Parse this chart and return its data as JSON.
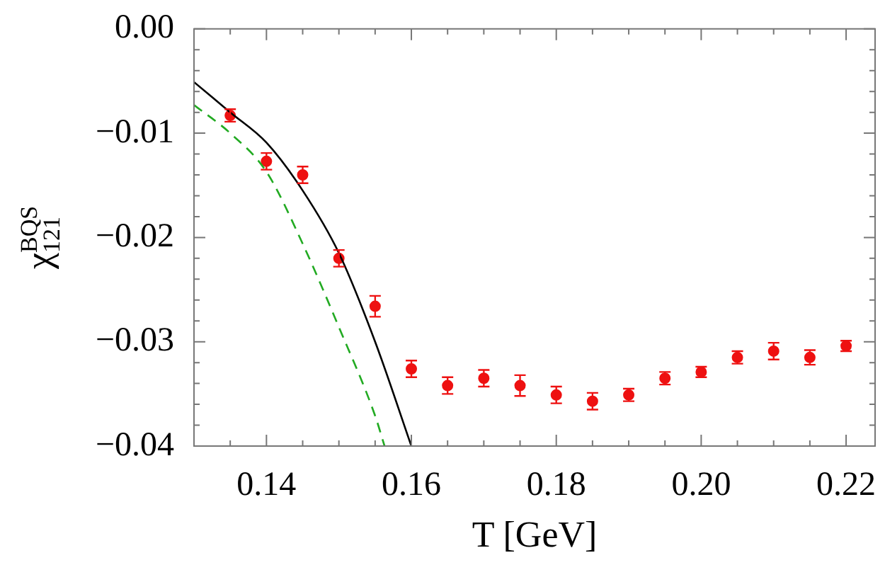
{
  "chart_data": {
    "type": "scatter",
    "xlabel": "T [GeV]",
    "ylabel": "χ$_{121}$$^{BQS}$",
    "xlim": [
      0.13,
      0.224
    ],
    "ylim": [
      -0.04,
      0
    ],
    "xticks": [
      {
        "value": 0.135,
        "label": null
      },
      {
        "value": 0.14,
        "label": "0.14"
      },
      {
        "value": 0.145,
        "label": null
      },
      {
        "value": 0.15,
        "label": null
      },
      {
        "value": 0.155,
        "label": null
      },
      {
        "value": 0.16,
        "label": "0.16"
      },
      {
        "value": 0.165,
        "label": null
      },
      {
        "value": 0.17,
        "label": null
      },
      {
        "value": 0.175,
        "label": null
      },
      {
        "value": 0.18,
        "label": "0.18"
      },
      {
        "value": 0.185,
        "label": null
      },
      {
        "value": 0.19,
        "label": null
      },
      {
        "value": 0.195,
        "label": null
      },
      {
        "value": 0.2,
        "label": "0.20"
      },
      {
        "value": 0.205,
        "label": null
      },
      {
        "value": 0.21,
        "label": null
      },
      {
        "value": 0.215,
        "label": null
      },
      {
        "value": 0.22,
        "label": "0.22"
      }
    ],
    "yticks": [
      {
        "value": -0.04,
        "label": "−0.04"
      },
      {
        "value": -0.038,
        "label": null
      },
      {
        "value": -0.036,
        "label": null
      },
      {
        "value": -0.034,
        "label": null
      },
      {
        "value": -0.032,
        "label": null
      },
      {
        "value": -0.03,
        "label": "−0.03"
      },
      {
        "value": -0.028,
        "label": null
      },
      {
        "value": -0.026,
        "label": null
      },
      {
        "value": -0.024,
        "label": null
      },
      {
        "value": -0.022,
        "label": null
      },
      {
        "value": -0.02,
        "label": "−0.02"
      },
      {
        "value": -0.018,
        "label": null
      },
      {
        "value": -0.016,
        "label": null
      },
      {
        "value": -0.014,
        "label": null
      },
      {
        "value": -0.012,
        "label": null
      },
      {
        "value": -0.01,
        "label": "−0.01"
      },
      {
        "value": -0.008,
        "label": null
      },
      {
        "value": -0.006,
        "label": null
      },
      {
        "value": -0.004,
        "label": null
      },
      {
        "value": -0.002,
        "label": null
      },
      {
        "value": 0,
        "label": "0.00"
      }
    ],
    "grid": false,
    "legend": false,
    "series": [
      {
        "type": "line",
        "color": "#000000",
        "line_style": "solid",
        "marker": "none",
        "x": [
          0.13,
          0.135,
          0.14,
          0.145,
          0.15,
          0.155,
          0.16
        ],
        "values": [
          -0.0051,
          -0.008,
          -0.0109,
          -0.0155,
          -0.0215,
          -0.03,
          -0.04
        ]
      },
      {
        "type": "line",
        "color": "#22aa22",
        "line_style": "dashed",
        "marker": "none",
        "x": [
          0.13,
          0.135,
          0.14,
          0.145,
          0.15,
          0.155,
          0.1563
        ],
        "values": [
          -0.0073,
          -0.01,
          -0.0137,
          -0.0206,
          -0.0286,
          -0.0371,
          -0.04
        ]
      },
      {
        "color": "#ee1111",
        "marker": "circle",
        "x": [
          0.135,
          0.14,
          0.145,
          0.15,
          0.155,
          0.16,
          0.165,
          0.17,
          0.175,
          0.18,
          0.185,
          0.19,
          0.195,
          0.2,
          0.205,
          0.21,
          0.215,
          0.22
        ],
        "values": [
          -0.0083,
          -0.0127,
          -0.014,
          -0.022,
          -0.0266,
          -0.0326,
          -0.0342,
          -0.0335,
          -0.0342,
          -0.0351,
          -0.0357,
          -0.0351,
          -0.0335,
          -0.0329,
          -0.0315,
          -0.0309,
          -0.0315,
          -0.0304
        ],
        "errors": [
          0.0006,
          0.0008,
          0.0008,
          0.0008,
          0.001,
          0.0008,
          0.0008,
          0.0008,
          0.001,
          0.0008,
          0.0008,
          0.0006,
          0.0006,
          0.0005,
          0.0006,
          0.0008,
          0.0007,
          0.0005
        ]
      }
    ]
  }
}
